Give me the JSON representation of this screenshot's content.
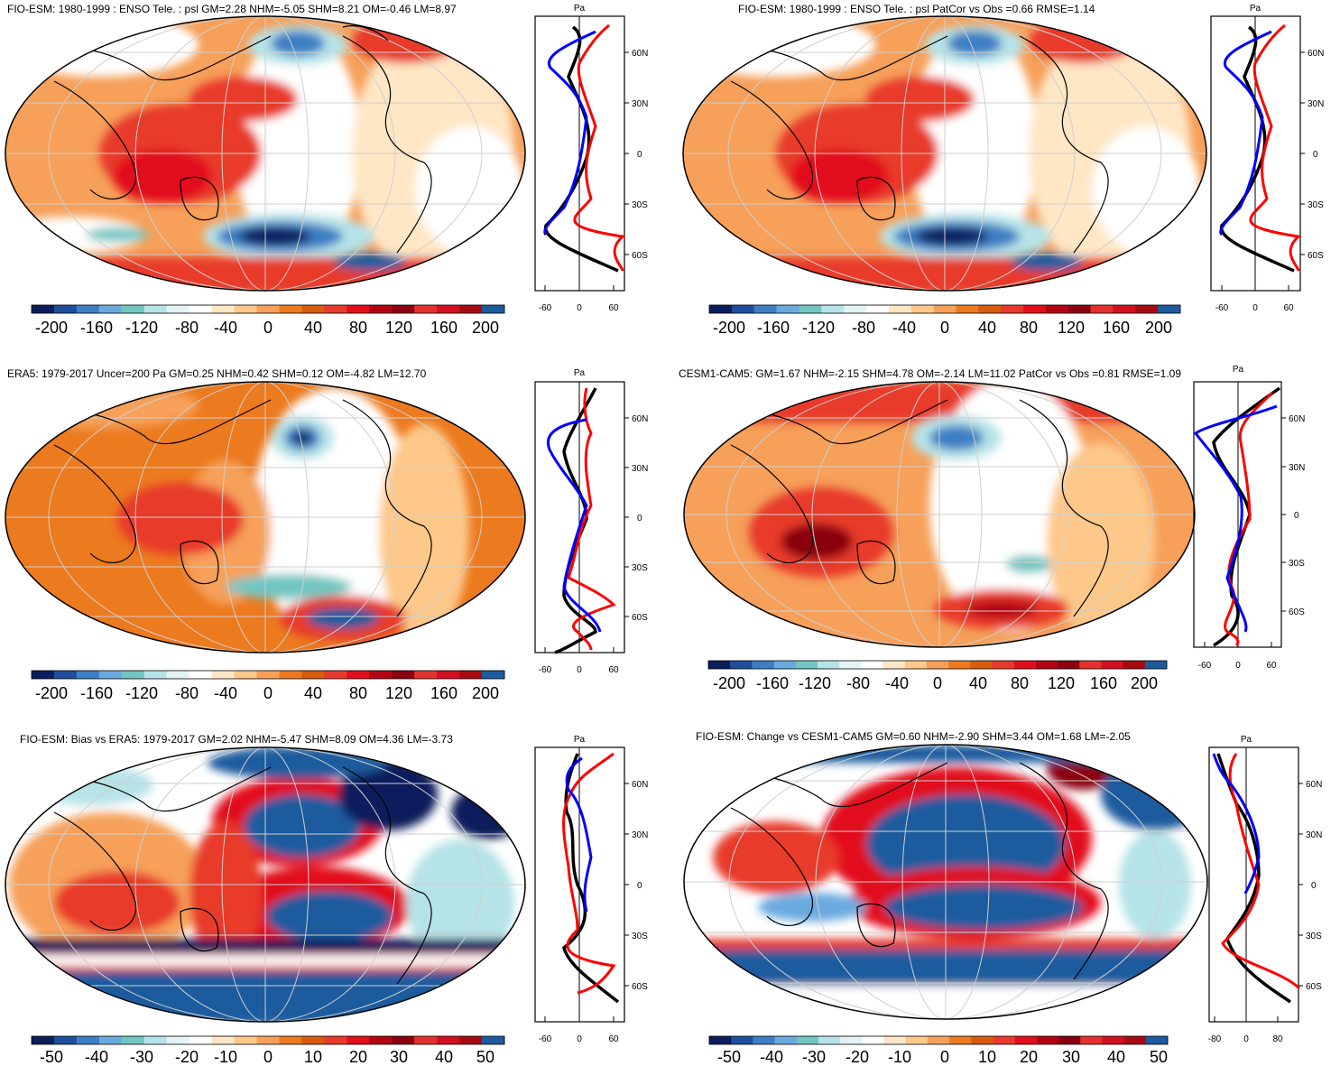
{
  "colors": {
    "ramp": [
      "#0b1d5c",
      "#1f4f9c",
      "#3d7fc4",
      "#6aaadf",
      "#72c6c2",
      "#b6e3e8",
      "#e3f3f6",
      "#ffffff",
      "#ffe6c4",
      "#fdc889",
      "#f6a05a",
      "#ec7a1f",
      "#d85c10",
      "#e83a2c",
      "#e20f1a",
      "#b40413",
      "#8b0010",
      "#e3322d",
      "#d40f20",
      "#a80a14",
      "#1e5b9e"
    ],
    "curve_model": "#000000",
    "curve_obs_a": "#ff0000",
    "curve_obs_b": "#0000ff",
    "grid": "#cfcfcf"
  },
  "panels": [
    {
      "title": "FIO-ESM: 1980-1999 : ENSO Tele. : psl GM=2.28 NHM=-5.05 SHM=8.21 OM=-0.46 LM=8.97",
      "colorbar": {
        "labels": [
          "-200",
          "-160",
          "-120",
          "-80",
          "-40",
          "0",
          "40",
          "80",
          "120",
          "160",
          "200"
        ]
      },
      "profile": {
        "unit": "Pa",
        "lat_labels": [
          "60N",
          "30N",
          "0",
          "30S",
          "60S"
        ],
        "x_labels": [
          "-60",
          "0",
          "60"
        ]
      }
    },
    {
      "title": "FIO-ESM: 1980-1999 : ENSO Tele. : psl PatCor vs Obs =0.66 RMSE=1.14",
      "colorbar": {
        "labels": [
          "-200",
          "-160",
          "-120",
          "-80",
          "-40",
          "0",
          "40",
          "80",
          "120",
          "160",
          "200"
        ]
      },
      "profile": {
        "unit": "Pa",
        "lat_labels": [
          "60N",
          "30N",
          "0",
          "30S",
          "60S"
        ],
        "x_labels": [
          "-60",
          "0",
          "60"
        ]
      }
    },
    {
      "title": "ERA5: 1979-2017 Uncer=200 Pa GM=0.25 NHM=0.42 SHM=0.12 OM=-4.82 LM=12.70",
      "colorbar": {
        "labels": [
          "-200",
          "-160",
          "-120",
          "-80",
          "-40",
          "0",
          "40",
          "80",
          "120",
          "160",
          "200"
        ]
      },
      "profile": {
        "unit": "Pa",
        "lat_labels": [
          "60N",
          "30N",
          "0",
          "30S",
          "60S"
        ],
        "x_labels": [
          "-60",
          "0",
          "60"
        ]
      }
    },
    {
      "title": "CESM1-CAM5: GM=1.67 NHM=-2.15 SHM=4.78 OM=-2.14 LM=11.02 PatCor vs Obs =0.81 RMSE=1.09",
      "colorbar": {
        "labels": [
          "-200",
          "-160",
          "-120",
          "-80",
          "-40",
          "0",
          "40",
          "80",
          "120",
          "160",
          "200"
        ]
      },
      "profile": {
        "unit": "Pa",
        "lat_labels": [
          "60N",
          "30N",
          "0",
          "30S",
          "60S"
        ],
        "x_labels": [
          "-60",
          "0",
          "60"
        ]
      }
    },
    {
      "title": "FIO-ESM: Bias vs ERA5: 1979-2017 GM=2.02 NHM=-5.47 SHM=8.09 OM=4.36 LM=-3.73",
      "colorbar": {
        "labels": [
          "-50",
          "-40",
          "-30",
          "-20",
          "-10",
          "0",
          "10",
          "20",
          "30",
          "40",
          "50"
        ]
      },
      "profile": {
        "unit": "Pa",
        "lat_labels": [
          "60N",
          "30N",
          "0",
          "30S",
          "60S"
        ],
        "x_labels": [
          "-60",
          "0",
          "60"
        ]
      }
    },
    {
      "title": "FIO-ESM: Change vs CESM1-CAM5 GM=0.60 NHM=-2.90 SHM=3.44 OM=1.68 LM=-2.05",
      "colorbar": {
        "labels": [
          "-50",
          "-40",
          "-30",
          "-20",
          "-10",
          "0",
          "10",
          "20",
          "30",
          "40",
          "50"
        ]
      },
      "profile": {
        "unit": "Pa",
        "lat_labels": [
          "60N",
          "30N",
          "0",
          "30S",
          "60S"
        ],
        "x_labels": [
          "-80",
          "0",
          "80"
        ]
      }
    }
  ]
}
